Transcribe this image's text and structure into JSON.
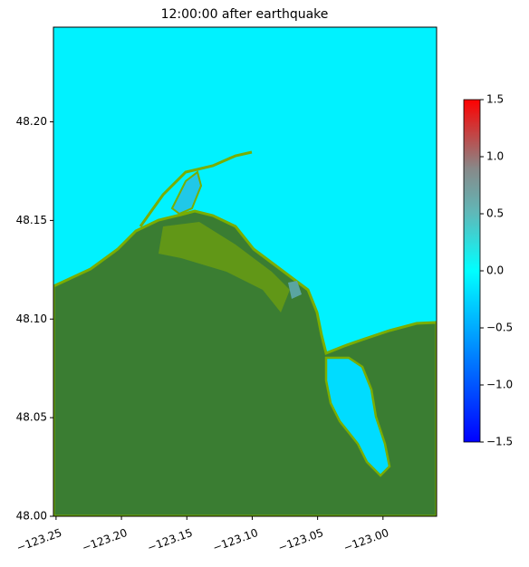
{
  "chart_data": {
    "type": "map",
    "title": "12:00:00 after earthquake",
    "xlim": [
      -123.252,
      -122.959
    ],
    "ylim": [
      48.0,
      48.248
    ],
    "xticks": [
      {
        "value": -123.25,
        "label": "−123.25"
      },
      {
        "value": -123.2,
        "label": "−123.20"
      },
      {
        "value": -123.15,
        "label": "−123.15"
      },
      {
        "value": -123.1,
        "label": "−123.10"
      },
      {
        "value": -123.05,
        "label": "−123.05"
      },
      {
        "value": -123.0,
        "label": "−123.00"
      }
    ],
    "yticks": [
      {
        "value": 48.0,
        "label": "48.00"
      },
      48.05,
      {
        "value": 48.1,
        "label": "48.10"
      },
      48.15,
      {
        "value": 48.2,
        "label": "48.20"
      }
    ],
    "colorbar": {
      "lim": [
        -1.5,
        1.5
      ],
      "ticks": [
        {
          "value": -1.5,
          "label": "−1.5"
        },
        {
          "value": -1.0,
          "label": "−1.0"
        },
        {
          "value": -0.5,
          "label": "−0.5"
        },
        {
          "value": 0.0,
          "label": "0.0"
        },
        0.5,
        {
          "value": 1.0,
          "label": "1.0"
        },
        1.5
      ]
    }
  }
}
